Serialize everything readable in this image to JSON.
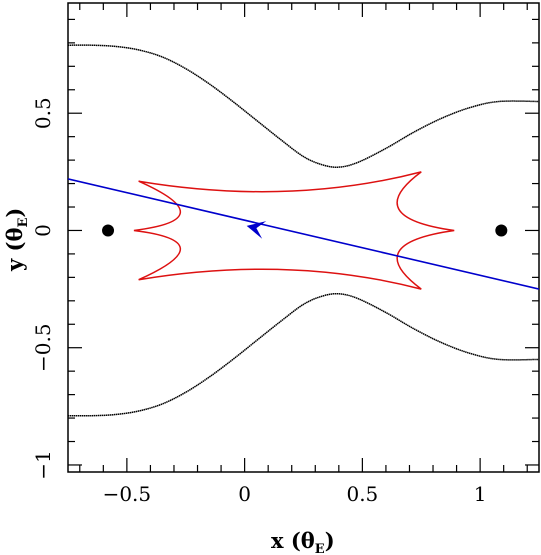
{
  "chart_data": {
    "type": "scatter",
    "xlabel": "x (θ",
    "ylabel": "y (θ",
    "label_subscript": "E",
    "xlim": [
      -0.75,
      1.25
    ],
    "ylim": [
      -1.03,
      0.97
    ],
    "x_ticks": [
      {
        "value": -0.5,
        "label": "−0.5"
      },
      {
        "value": 0,
        "label": "0"
      },
      {
        "value": 0.5,
        "label": "0.5"
      },
      {
        "value": 1,
        "label": "1"
      }
    ],
    "y_ticks": [
      {
        "value": -1,
        "label": "−1"
      },
      {
        "value": -0.5,
        "label": "−0.5"
      },
      {
        "value": 0,
        "label": "0"
      },
      {
        "value": 0.5,
        "label": "0.5"
      }
    ],
    "lenses": [
      {
        "x": -0.58,
        "y": 0.0
      },
      {
        "x": 1.09,
        "y": 0.0
      }
    ],
    "critical_curve": {
      "color": "#000000",
      "upper": [
        [
          -0.75,
          0.79
        ],
        [
          -0.65,
          0.79
        ],
        [
          -0.55,
          0.785
        ],
        [
          -0.45,
          0.77
        ],
        [
          -0.35,
          0.74
        ],
        [
          -0.25,
          0.69
        ],
        [
          -0.15,
          0.625
        ],
        [
          -0.05,
          0.55
        ],
        [
          0.05,
          0.47
        ],
        [
          0.15,
          0.39
        ],
        [
          0.25,
          0.315
        ],
        [
          0.33,
          0.28
        ],
        [
          0.4,
          0.27
        ],
        [
          0.48,
          0.29
        ],
        [
          0.6,
          0.35
        ],
        [
          0.72,
          0.42
        ],
        [
          0.84,
          0.48
        ],
        [
          0.96,
          0.525
        ],
        [
          1.08,
          0.55
        ],
        [
          1.25,
          0.55
        ]
      ]
    },
    "caustic": {
      "color": "#dd1111",
      "cusps": [
        [
          -0.45,
          0.21
        ],
        [
          -0.47,
          0.0
        ],
        [
          -0.45,
          -0.21
        ],
        [
          0.75,
          0.25
        ],
        [
          0.89,
          0.0
        ],
        [
          0.75,
          -0.25
        ]
      ],
      "fold_depth": 0.06
    },
    "trajectory": {
      "color": "#0000cc",
      "start": [
        -0.75,
        0.22
      ],
      "end": [
        1.25,
        -0.25
      ],
      "arrow_at": [
        0.05,
        0.01
      ]
    }
  }
}
